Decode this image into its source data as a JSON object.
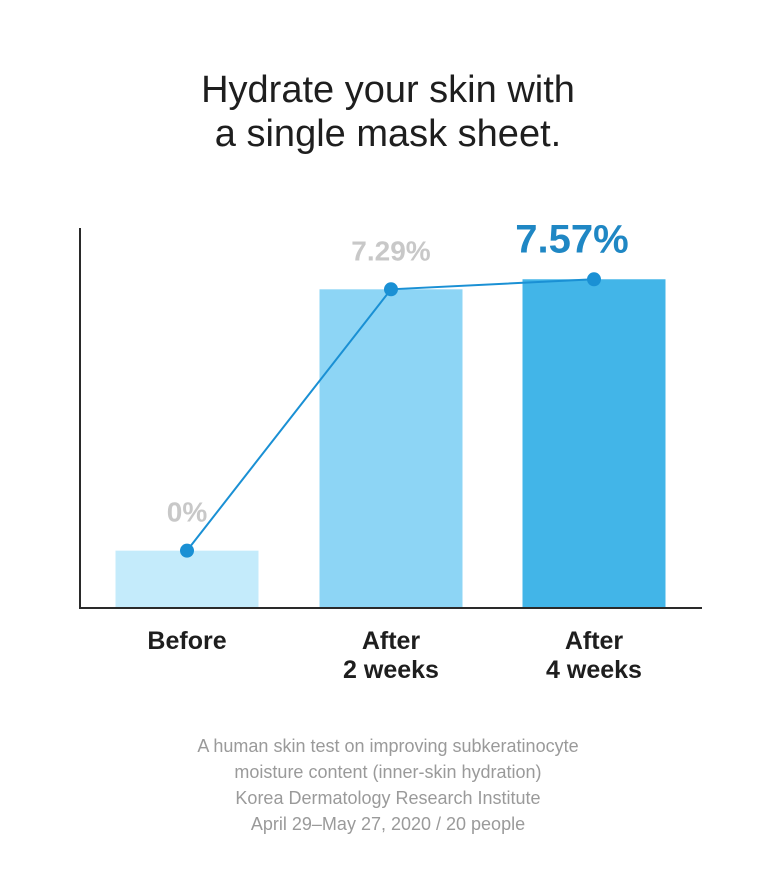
{
  "title": {
    "line1": "Hydrate your skin with",
    "line2": "a single mask sheet."
  },
  "chart_data": {
    "type": "bar",
    "categories": [
      [
        "Before"
      ],
      [
        "After",
        "2 weeks"
      ],
      [
        "After",
        "4 weeks"
      ]
    ],
    "values": [
      0,
      7.29,
      7.57
    ],
    "value_labels": [
      "0%",
      "7.29%",
      "7.57%"
    ],
    "overlay": "line",
    "bar_colors": [
      "#c4ebfb",
      "#8dd5f5",
      "#42b5e8"
    ],
    "line_color": "#1a90d4",
    "label_color_muted": "#c8c8c8",
    "label_color_highlight": "#1f87c4",
    "axis_color": "#2a2a2a",
    "ylim": [
      -1.6,
      9.0
    ],
    "grid": false,
    "legend": "none",
    "xlabel": "",
    "ylabel": ""
  },
  "footnote": {
    "line1": "A human skin test on improving subkeratinocyte",
    "line2": "moisture content (inner-skin hydration)",
    "line3": "Korea Dermatology Research Institute",
    "line4": "April 29–May 27, 2020 / 20 people"
  }
}
